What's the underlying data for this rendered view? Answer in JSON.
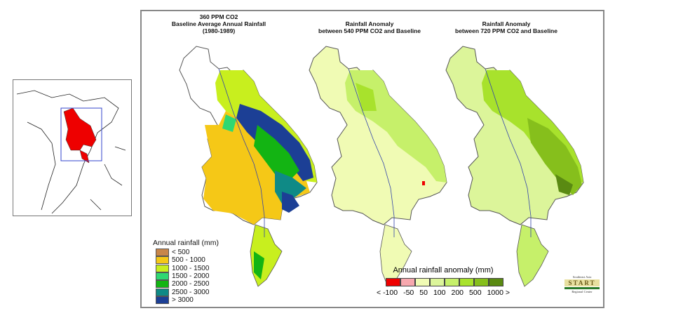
{
  "maps": [
    {
      "title_lines": [
        "360 PPM CO2",
        "Baseline Average Annual Rainfall",
        "(1980-1989)"
      ]
    },
    {
      "title_lines": [
        "Rainfall Anomaly",
        "between 540 PPM CO2 and Baseline"
      ]
    },
    {
      "title_lines": [
        "Rainfall Anomaly",
        "between 720 PPM CO2 and Baseline"
      ]
    }
  ],
  "rainfall_legend": {
    "title": "Annual rainfall (mm)",
    "items": [
      {
        "label": "< 500",
        "color": "#c8864a"
      },
      {
        "label": "500 - 1000",
        "color": "#f5c817"
      },
      {
        "label": "1000 - 1500",
        "color": "#c8ef1e"
      },
      {
        "label": "1500 - 2000",
        "color": "#2fd872"
      },
      {
        "label": "2000 - 2500",
        "color": "#13b413"
      },
      {
        "label": "2500 - 3000",
        "color": "#0f8a86"
      },
      {
        "label": "> 3000",
        "color": "#1c3f95"
      }
    ]
  },
  "anomaly_legend": {
    "title": "Annual rainfall anomaly (mm)",
    "colors": [
      "#ee0000",
      "#f7a8ae",
      "#f0fbb4",
      "#dcf59a",
      "#c6f06a",
      "#a8e22c",
      "#86bf1c",
      "#5a8a12"
    ],
    "labels": [
      "< -100",
      "-50",
      "50",
      "100",
      "200",
      "500",
      "1000 >"
    ]
  },
  "logo": {
    "line1": "Southeast Asia",
    "name": "START",
    "line2": "Regional Center"
  },
  "inset": {
    "highlight_color": "#ee0000",
    "box_color": "#3344cc"
  }
}
